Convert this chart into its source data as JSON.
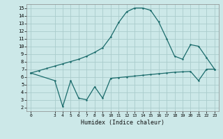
{
  "xlabel": "Humidex (Indice chaleur)",
  "background_color": "#cce8e8",
  "grid_color": "#aacccc",
  "line_color": "#1a6b6b",
  "xlim": [
    -0.5,
    23.5
  ],
  "ylim": [
    1.5,
    15.5
  ],
  "yticks": [
    2,
    3,
    4,
    5,
    6,
    7,
    8,
    9,
    10,
    11,
    12,
    13,
    14,
    15
  ],
  "xticks": [
    0,
    3,
    4,
    5,
    6,
    7,
    8,
    9,
    10,
    11,
    12,
    13,
    14,
    15,
    16,
    17,
    18,
    19,
    20,
    21,
    22,
    23
  ],
  "line1_x": [
    0,
    1,
    2,
    3,
    4,
    5,
    6,
    7,
    8,
    9,
    10,
    11,
    12,
    13,
    14,
    15,
    16,
    17,
    18,
    19,
    20,
    21,
    22,
    23
  ],
  "line1_y": [
    6.5,
    6.8,
    7.1,
    7.4,
    7.7,
    8.0,
    8.3,
    8.7,
    9.2,
    9.8,
    11.2,
    13.1,
    14.5,
    15.0,
    15.0,
    14.7,
    13.2,
    11.0,
    8.7,
    8.3,
    10.2,
    10.0,
    8.5,
    7.0
  ],
  "line2_x": [
    0,
    3,
    4,
    5,
    6,
    7,
    8,
    9,
    10,
    11,
    12,
    13,
    14,
    15,
    16,
    17,
    18,
    19,
    20,
    21,
    22,
    23
  ],
  "line2_y": [
    6.5,
    5.5,
    2.1,
    5.5,
    3.2,
    3.0,
    4.7,
    3.2,
    5.8,
    5.9,
    6.0,
    6.1,
    6.2,
    6.3,
    6.4,
    6.5,
    6.6,
    6.65,
    6.7,
    5.5,
    7.0,
    7.0
  ]
}
